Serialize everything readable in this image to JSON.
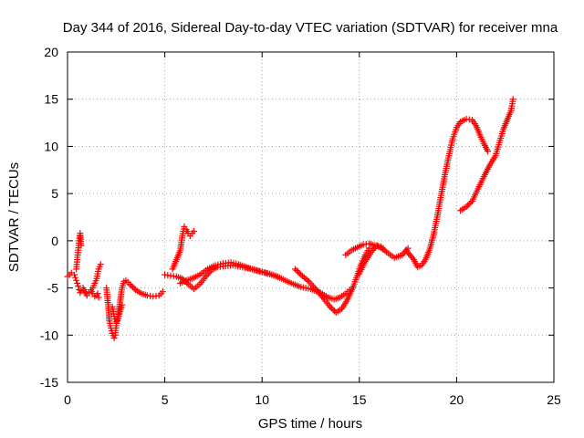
{
  "chart_data": {
    "type": "scatter",
    "title": "Day 344 of 2016, Sidereal Day-to-day VTEC variation (SDTVAR) for receiver mna",
    "xlabel": "GPS time / hours",
    "ylabel": "SDTVAR / TECUs",
    "xlim": [
      0,
      25
    ],
    "ylim": [
      -15,
      20
    ],
    "xticks": [
      0,
      5,
      10,
      15,
      20,
      25
    ],
    "yticks": [
      -15,
      -10,
      -5,
      0,
      5,
      10,
      15,
      20
    ],
    "xtick_labels": [
      "0",
      "5",
      "10",
      "15",
      "20",
      "25"
    ],
    "ytick_labels": [
      "-15",
      "-10",
      "-5",
      "0",
      "5",
      "10",
      "15",
      "20"
    ],
    "grid": true,
    "grid_style": "dotted",
    "marker": "+",
    "color": "#ff0000",
    "series": [
      {
        "x": [
          0.0,
          0.2,
          0.35,
          0.45,
          0.55,
          0.6,
          0.65,
          0.7,
          0.8,
          0.9,
          1.0,
          1.1,
          1.2,
          1.3,
          1.4,
          1.5,
          1.55,
          1.6
        ],
        "y": [
          -3.8,
          -3.4,
          -3.6,
          -4.2,
          -4.8,
          -5.2,
          -5.5,
          -5.3,
          -5.0,
          -5.4,
          -5.8,
          -5.5,
          -5.2,
          -5.6,
          -5.9,
          -5.8,
          -5.6,
          -6.0
        ]
      },
      {
        "x": [
          0.45,
          0.5,
          0.55,
          0.6,
          0.65,
          0.7
        ],
        "y": [
          -3.0,
          -2.0,
          -1.0,
          0.0,
          0.8,
          -0.5
        ]
      },
      {
        "x": [
          1.3,
          1.4,
          1.5,
          1.6,
          1.7
        ],
        "y": [
          -5.0,
          -4.5,
          -4.0,
          -3.0,
          -2.5
        ]
      },
      {
        "x": [
          2.0,
          2.1,
          2.15,
          2.2,
          2.3,
          2.4,
          2.45,
          2.5,
          2.6,
          2.7,
          2.8,
          2.9,
          3.0,
          3.2,
          3.5,
          3.8,
          4.1,
          4.4,
          4.7,
          4.9
        ],
        "y": [
          -5.0,
          -7.0,
          -8.5,
          -9.0,
          -9.8,
          -10.3,
          -10.0,
          -9.0,
          -8.0,
          -6.5,
          -5.0,
          -4.3,
          -4.2,
          -4.6,
          -5.2,
          -5.6,
          -5.8,
          -5.9,
          -5.8,
          -5.4
        ]
      },
      {
        "x": [
          2.3,
          2.4,
          2.5,
          2.6,
          2.7,
          2.8
        ],
        "y": [
          -7.0,
          -8.0,
          -8.6,
          -8.2,
          -7.5,
          -6.8
        ]
      },
      {
        "x": [
          5.0,
          5.3,
          5.6,
          5.9,
          6.2,
          6.5,
          6.8,
          7.1,
          7.4,
          7.7,
          8.0,
          8.5,
          9.0,
          9.5,
          10.0,
          10.5,
          11.0,
          11.5,
          12.0,
          12.5,
          13.0,
          13.4,
          13.7,
          14.0,
          14.3,
          14.5
        ],
        "y": [
          -3.6,
          -3.7,
          -3.8,
          -4.0,
          -4.6,
          -5.1,
          -4.6,
          -3.8,
          -3.1,
          -2.8,
          -2.7,
          -2.6,
          -2.8,
          -3.0,
          -3.3,
          -3.6,
          -4.0,
          -4.5,
          -4.9,
          -5.1,
          -5.5,
          -6.0,
          -6.2,
          -6.0,
          -5.6,
          -5.2
        ]
      },
      {
        "x": [
          5.4,
          5.6,
          5.8,
          5.9,
          6.0,
          6.1,
          6.2,
          6.3,
          6.4,
          6.5
        ],
        "y": [
          -3.0,
          -2.0,
          -1.0,
          0.5,
          1.5,
          1.2,
          0.8,
          0.5,
          0.8,
          1.0
        ]
      },
      {
        "x": [
          5.8,
          6.1,
          6.4,
          6.8,
          7.2,
          7.6,
          8.0,
          8.4,
          8.8,
          9.2,
          9.6,
          10.0,
          10.4,
          10.8
        ],
        "y": [
          -4.5,
          -4.2,
          -4.0,
          -3.6,
          -3.0,
          -2.6,
          -2.4,
          -2.3,
          -2.5,
          -2.8,
          -3.1,
          -3.3,
          -3.5,
          -3.8
        ]
      },
      {
        "x": [
          11.7,
          12.0,
          12.4,
          12.8,
          13.2,
          13.5,
          13.8,
          14.1,
          14.4,
          14.7,
          15.0,
          15.3,
          15.5
        ],
        "y": [
          -3.0,
          -3.6,
          -4.3,
          -5.2,
          -6.2,
          -7.0,
          -7.6,
          -7.2,
          -6.2,
          -4.8,
          -3.0,
          -1.5,
          -0.8
        ]
      },
      {
        "x": [
          14.3,
          14.6,
          14.9,
          15.2,
          15.5,
          15.8,
          16.1,
          16.4,
          16.8,
          17.2,
          17.5
        ],
        "y": [
          -1.5,
          -1.0,
          -0.7,
          -0.4,
          -0.3,
          -0.5,
          -0.6,
          -1.2,
          -1.8,
          -1.5,
          -0.8
        ]
      },
      {
        "x": [
          15.0,
          15.3,
          15.6,
          15.9,
          16.2
        ],
        "y": [
          -3.5,
          -2.2,
          -1.2,
          -0.5,
          -0.9
        ]
      },
      {
        "x": [
          17.4,
          17.6,
          17.8,
          18.0,
          18.2,
          18.4,
          18.6,
          18.8,
          19.0,
          19.2,
          19.4,
          19.6,
          19.8,
          20.0,
          20.2,
          20.5,
          20.8,
          21.0,
          21.2,
          21.4,
          21.6
        ],
        "y": [
          -1.0,
          -1.5,
          -2.0,
          -2.8,
          -2.6,
          -2.0,
          -1.0,
          0.5,
          2.5,
          4.8,
          7.0,
          9.0,
          10.8,
          12.0,
          12.6,
          12.9,
          12.8,
          12.2,
          11.2,
          10.3,
          9.5
        ]
      },
      {
        "x": [
          20.2,
          20.5,
          20.8,
          21.1,
          21.4,
          21.7,
          22.0,
          22.2,
          22.4,
          22.6,
          22.8,
          22.9
        ],
        "y": [
          3.2,
          3.6,
          4.2,
          5.5,
          6.8,
          8.0,
          9.0,
          10.4,
          11.8,
          12.8,
          13.8,
          15.0
        ]
      }
    ]
  }
}
